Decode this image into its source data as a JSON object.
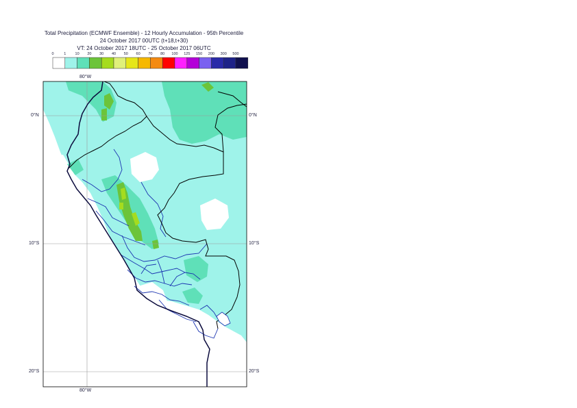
{
  "header": {
    "title_line1": "Total Precipitation (ECMWF Ensemble) - 12 Hourly Accumulation - 95th Percentile",
    "title_line2": "24 October 2017 00UTC (t+18,t+30)",
    "title_line3": "VT: 24 October 2017 18UTC - 25 October 2017 06UTC"
  },
  "legend": {
    "thresholds": [
      "0",
      "1",
      "10",
      "20",
      "30",
      "40",
      "50",
      "60",
      "70",
      "80",
      "100",
      "125",
      "150",
      "200",
      "300",
      "500"
    ],
    "colors": [
      "#ffffff",
      "#9ff3ea",
      "#5fe0b8",
      "#6cc43a",
      "#a5dc1f",
      "#e0f07a",
      "#e6e61a",
      "#f6b800",
      "#f48a10",
      "#ff0000",
      "#ff20ff",
      "#b400d8",
      "#7a60f0",
      "#2a2aa8",
      "#1e2288",
      "#10104e"
    ]
  },
  "map": {
    "lon_labels": [
      "80°W",
      "80°W"
    ],
    "lat_labels_left": [
      "0°N",
      "10°S",
      "20°S"
    ],
    "lat_labels_right": [
      "0°N",
      "10°S",
      "20°S"
    ],
    "colors": {
      "ocean": "#ffffff",
      "precip_light": "#9ff3ea",
      "precip_medium": "#5fe0b8",
      "precip_heavy": "#6cc43a",
      "precip_very_heavy": "#a5dc1f",
      "coastline": "#0a0a3c",
      "country_border": "#000000",
      "region_border": "#1a33b0",
      "grid": "#9a9a9a"
    }
  }
}
